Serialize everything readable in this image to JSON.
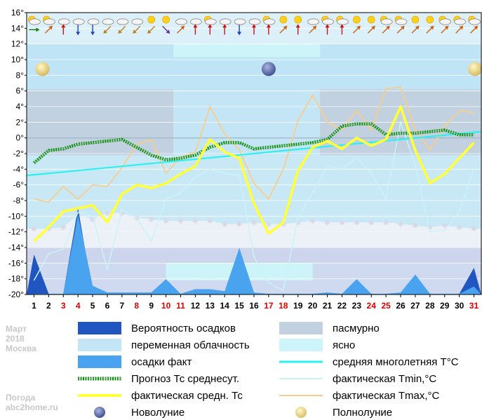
{
  "chart_data": {
    "type": "line",
    "month": "Март",
    "year": "2018",
    "city": "Москва",
    "ylim": [
      -20,
      16
    ],
    "y_ticks": [
      "16°",
      "14°",
      "12°",
      "10°",
      "8°",
      "6°",
      "4°",
      "2°",
      "0°",
      "-2°",
      "-4°",
      "-6°",
      "-8°",
      "-10°",
      "-12°",
      "-14°",
      "-16°",
      "-18°",
      "-20°"
    ],
    "days": [
      "1",
      "2",
      "3",
      "4",
      "5",
      "6",
      "7",
      "8",
      "9",
      "10",
      "11",
      "12",
      "13",
      "14",
      "15",
      "16",
      "17",
      "18",
      "19",
      "20",
      "21",
      "22",
      "23",
      "24",
      "25",
      "26",
      "27",
      "28",
      "29",
      "30",
      "31"
    ],
    "weekend_days": [
      3,
      4,
      8,
      10,
      11,
      17,
      18,
      24,
      25,
      31
    ],
    "colors": {
      "overcast": "#c1d1e0",
      "variable": "#c3e5f6",
      "clear": "#cdf4f8",
      "precip_prob": "#2156c0",
      "precip_fact": "#4aa3ee",
      "forecast_avg": "#158d15",
      "actual_avg": "#ffff3a",
      "norm_avg": "#2cf0f0",
      "tmin": "#c9f3f8",
      "tmax": "#f7cd8d",
      "weekday": "#000000",
      "weekend": "#e00000"
    },
    "cloud_periods": [
      {
        "type": "overcast",
        "from": 0.5,
        "to": 10.5
      },
      {
        "type": "variable",
        "from": 10.5,
        "to": 20.5
      },
      {
        "type": "overcast",
        "from": 20.5,
        "to": 31.5
      }
    ],
    "clear_periods": [
      {
        "from": 10.5,
        "to": 20.5
      }
    ],
    "series": [
      {
        "name": "фактическая Tmax,°C",
        "key": "tmax",
        "values": [
          -7.8,
          -8.2,
          -6.2,
          -7.8,
          -6.0,
          -6.2,
          -3.8,
          -0.8,
          -0.2,
          -4.5,
          -2.5,
          -1.8,
          4.0,
          0.5,
          -1.5,
          -5.8,
          -7.8,
          -4.0,
          2.2,
          5.5,
          2.0,
          1.0,
          3.5,
          1.0,
          6.3,
          6.5,
          1.0,
          -1.5,
          1.5,
          3.5,
          3.2
        ]
      },
      {
        "name": "фактическая Tmin,°C",
        "key": "tmin",
        "values": [
          -18.2,
          -14.8,
          -14.2,
          -9.5,
          -10.0,
          -16.8,
          -9.2,
          -10.2,
          -13.2,
          -7.8,
          -7.0,
          -5.0,
          -4.0,
          -4.5,
          -4.8,
          -15.2,
          -18.5,
          -19.5,
          -10.2,
          -7.0,
          -3.6,
          -4.0,
          -2.5,
          -4.5,
          -7.8,
          2.0,
          -3.5,
          -12.0,
          -11.8,
          -9.5,
          -4.0
        ]
      },
      {
        "name": "Прогноз Тс среднесут.",
        "key": "forecast_avg",
        "values": [
          -3.2,
          -1.6,
          -1.4,
          -0.8,
          -0.6,
          -0.4,
          -0.2,
          -1.2,
          -2.2,
          -2.8,
          -2.6,
          -2.2,
          -1.2,
          -0.6,
          -0.6,
          -1.4,
          -1.2,
          -1.0,
          -0.8,
          -0.6,
          -0.2,
          1.5,
          1.8,
          1.8,
          0.4,
          0.6,
          0.6,
          0.8,
          1.0,
          0.4,
          0.4
        ]
      },
      {
        "name": "фактическая средн. Тс",
        "key": "actual_avg",
        "values": [
          -13.2,
          -11.4,
          -9.4,
          -9.0,
          -8.6,
          -10.8,
          -7.2,
          -6.0,
          -6.4,
          -5.8,
          -4.6,
          -3.6,
          -0.2,
          -1.8,
          -2.6,
          -8.4,
          -12.2,
          -10.8,
          -4.2,
          -1.2,
          -0.4,
          -1.4,
          0.0,
          -1.0,
          -0.2,
          4.0,
          -1.6,
          -5.8,
          -4.6,
          -2.6,
          -0.6
        ]
      },
      {
        "name": "средняя многолетняя T°C",
        "key": "norm_avg",
        "from": -4.8,
        "to": 0.8
      }
    ],
    "precip_fact": [
      0.1,
      0.1,
      0.1,
      12.0,
      1.3,
      0.3,
      0.3,
      0.3,
      0.3,
      2.3,
      0.1,
      0.8,
      0.8,
      0.5,
      7.0,
      0.3,
      0.1,
      0.1,
      0.1,
      0.1,
      0.3,
      0.1,
      2.3,
      0.1,
      0.1,
      0.3,
      3.0,
      0.1,
      0.1,
      0.1,
      1.2
    ],
    "precip_prob": [
      6.0,
      0.1,
      0.1,
      13.0,
      0.1,
      0.1,
      0.1,
      0.1,
      0.1,
      0.1,
      0.1,
      0.1,
      0.1,
      0.1,
      0.1,
      0.1,
      0.1,
      0.1,
      0.1,
      0.1,
      0.1,
      0.1,
      0.1,
      0.1,
      0.1,
      0.1,
      0.1,
      0.1,
      0.1,
      0.1,
      4.0
    ],
    "snow_band_top": [
      -11.6,
      -11.6,
      -11.4,
      -9.8,
      -10.4,
      -9.6,
      -9.6,
      -10.2,
      -10.4,
      -10.6,
      -10.6,
      -10.6,
      -10.6,
      -11.0,
      -11.0,
      -10.8,
      -11.0,
      -11.0,
      -10.8,
      -10.6,
      -10.8,
      -10.8,
      -10.8,
      -10.8,
      -10.8,
      -11.0,
      -11.2,
      -11.4,
      -11.2,
      -11.4,
      -11.6
    ],
    "snow_band_bottom": -14.0,
    "moon_events": [
      {
        "day": 1,
        "phase": "full"
      },
      {
        "day": 17,
        "phase": "new"
      },
      {
        "day": 31,
        "phase": "full"
      }
    ],
    "weather_icons": [
      "partly-cloudy",
      "partly-cloudy",
      "cloudy",
      "cloudy",
      "cloudy",
      "cloudy",
      "cloudy",
      "cloudy",
      "sunny",
      "sunny",
      "cloudy",
      "cloudy",
      "partly-cloudy",
      "cloudy",
      "cloudy",
      "cloudy",
      "partly-cloudy",
      "sunny",
      "sunny",
      "cloudy",
      "partly-cloudy",
      "partly-cloudy",
      "sunny",
      "sunny",
      "partly-cloudy",
      "partly-cloudy",
      "sunny",
      "sunny",
      "partly-cloudy",
      "partly-cloudy",
      "partly-cloudy"
    ],
    "wind_dirs": [
      "E",
      "NE",
      "N",
      "S",
      "S",
      "SW",
      "SW",
      "SW",
      "SW",
      "SE",
      "NE",
      "N",
      "N",
      "N",
      "S",
      "N",
      "N",
      "NE",
      "N",
      "NE",
      "N",
      "N",
      "NE",
      "NE",
      "NE",
      "NE",
      "NE",
      "NE",
      "NE",
      "NE",
      "NE"
    ],
    "legend": [
      {
        "key": "precip_prob",
        "label": "Вероятность осадков",
        "style": "band"
      },
      {
        "key": "overcast",
        "label": "пасмурно",
        "style": "band"
      },
      {
        "key": "variable",
        "label": "переменная облачность",
        "style": "band"
      },
      {
        "key": "clear",
        "label": "ясно",
        "style": "band"
      },
      {
        "key": "precip_fact",
        "label": "осадки факт",
        "style": "band"
      },
      {
        "key": "norm_avg",
        "label": "средняя многолетняя T°C",
        "style": "line"
      },
      {
        "key": "forecast_avg",
        "label": "Прогноз Тс среднесут.",
        "style": "dotted"
      },
      {
        "key": "tmin",
        "label": "фактическая Tmin,°C",
        "style": "thin"
      },
      {
        "key": "actual_avg",
        "label": "фактическая средн. Тс",
        "style": "thick"
      },
      {
        "key": "tmax",
        "label": "фактическая Tmax,°C",
        "style": "thin"
      },
      {
        "key": "new_moon",
        "label": "Новолуние",
        "style": "moon-new"
      },
      {
        "key": "full_moon",
        "label": "Полнолуние",
        "style": "moon-full"
      }
    ],
    "footer_lines": [
      "Погода",
      "abc2home.ru"
    ]
  }
}
